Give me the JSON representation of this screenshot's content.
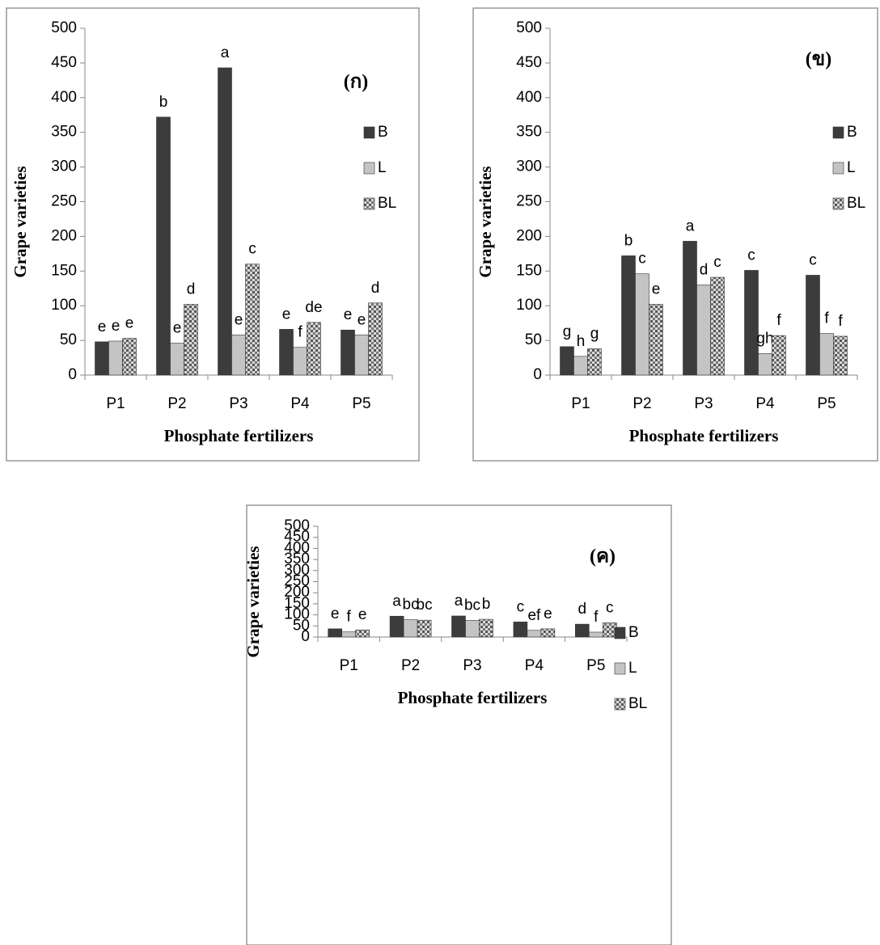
{
  "chart_data": [
    {
      "type": "bar",
      "title": "(ก)",
      "x_label": "Phosphate fertilizers",
      "y_label": "Grape varieties",
      "categories": [
        "P1",
        "P2",
        "P3",
        "P4",
        "P5"
      ],
      "series": [
        {
          "name": "B",
          "color": "#3c3c3c",
          "values": [
            48,
            372,
            443,
            66,
            65
          ],
          "labels": [
            "e",
            "b",
            "a",
            "e",
            "e"
          ]
        },
        {
          "name": "L",
          "color": "#c4c4c4",
          "values": [
            49,
            46,
            58,
            40,
            58
          ],
          "labels": [
            "e",
            "e",
            "e",
            "f",
            "e"
          ]
        },
        {
          "name": "BL",
          "color": "#8a8a8a",
          "values": [
            53,
            102,
            160,
            76,
            104
          ],
          "labels": [
            "e",
            "d",
            "c",
            "de",
            "d"
          ]
        }
      ],
      "ylim": [
        0,
        500
      ],
      "yticks": [
        0,
        50,
        100,
        150,
        200,
        250,
        300,
        350,
        400,
        450,
        500
      ]
    },
    {
      "type": "bar",
      "title": "(ข)",
      "x_label": "Phosphate fertilizers",
      "y_label": "Grape varieties",
      "categories": [
        "P1",
        "P2",
        "P3",
        "P4",
        "P5"
      ],
      "series": [
        {
          "name": "B",
          "color": "#3c3c3c",
          "values": [
            41,
            172,
            193,
            151,
            144
          ],
          "labels": [
            "g",
            "b",
            "a",
            "c",
            "c"
          ]
        },
        {
          "name": "L",
          "color": "#c4c4c4",
          "values": [
            27,
            146,
            130,
            31,
            60
          ],
          "labels": [
            "h",
            "c",
            "d",
            "gh",
            "f"
          ]
        },
        {
          "name": "BL",
          "color": "#8a8a8a",
          "values": [
            38,
            102,
            141,
            57,
            56
          ],
          "labels": [
            "g",
            "e",
            "c",
            "f",
            "f"
          ]
        }
      ],
      "ylim": [
        0,
        500
      ],
      "yticks": [
        0,
        50,
        100,
        150,
        200,
        250,
        300,
        350,
        400,
        450,
        500
      ]
    },
    {
      "type": "bar",
      "title": "(ค)",
      "x_label": "Phosphate fertilizers",
      "y_label": "Grape varieties",
      "categories": [
        "P1",
        "P2",
        "P3",
        "P4",
        "P5"
      ],
      "series": [
        {
          "name": "B",
          "color": "#3c3c3c",
          "values": [
            37,
            94,
            95,
            68,
            58
          ],
          "labels": [
            "e",
            "a",
            "a",
            "c",
            "d"
          ]
        },
        {
          "name": "L",
          "color": "#c4c4c4",
          "values": [
            23,
            78,
            75,
            30,
            22
          ],
          "labels": [
            "f",
            "bc",
            "bc",
            "ef",
            "f"
          ]
        },
        {
          "name": "BL",
          "color": "#8a8a8a",
          "values": [
            32,
            76,
            80,
            37,
            64
          ],
          "labels": [
            "e",
            "bc",
            "b",
            "e",
            "c"
          ]
        }
      ],
      "ylim": [
        0,
        500
      ],
      "yticks": [
        0,
        50,
        100,
        150,
        200,
        250,
        300,
        350,
        400,
        450,
        500
      ]
    }
  ]
}
